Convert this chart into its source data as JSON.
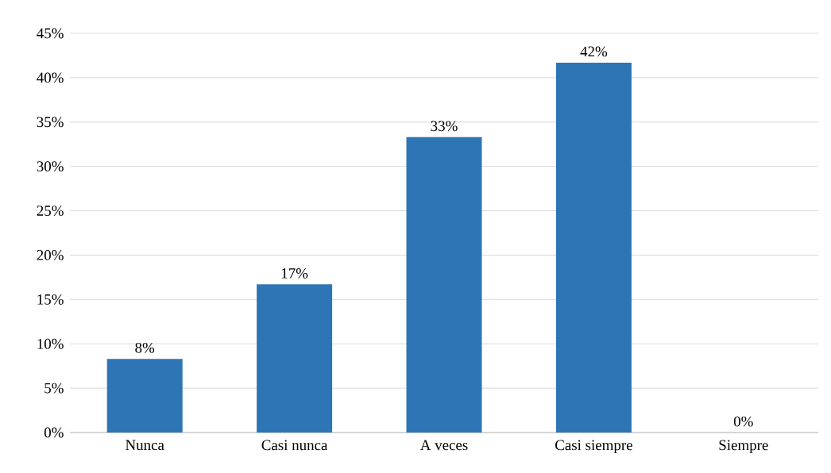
{
  "chart_data": {
    "type": "bar",
    "categories": [
      "Nunca",
      "Casi nunca",
      "A veces",
      "Casi siempre",
      "Siempre"
    ],
    "values": [
      8.3,
      16.7,
      33.3,
      41.7,
      0
    ],
    "value_labels": [
      "8%",
      "17%",
      "33%",
      "42%",
      "0%"
    ],
    "color": "#2e75b6",
    "ylim": [
      0,
      45
    ],
    "yticks": [
      {
        "value": 0,
        "label": "0%"
      },
      {
        "value": 5,
        "label": "5%"
      },
      {
        "value": 10,
        "label": "10%"
      },
      {
        "value": 15,
        "label": "15%"
      },
      {
        "value": 20,
        "label": "20%"
      },
      {
        "value": 25,
        "label": "25%"
      },
      {
        "value": 30,
        "label": "30%"
      },
      {
        "value": 35,
        "label": "35%"
      },
      {
        "value": 40,
        "label": "40%"
      },
      {
        "value": 45,
        "label": "45%"
      }
    ],
    "grid": "y"
  }
}
